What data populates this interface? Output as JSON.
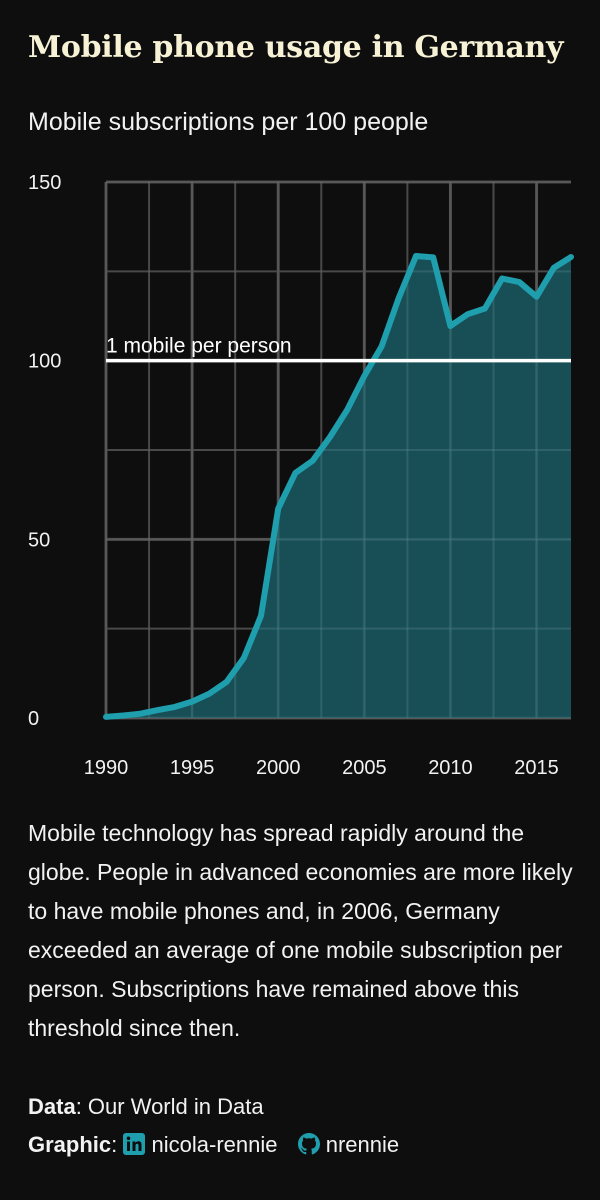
{
  "title": "Mobile phone usage in Germany",
  "subtitle": "Mobile subscriptions per 100 people",
  "body": "Mobile technology has spread rapidly around the globe. People in advanced economies are more likely to have mobile phones and, in 2006, Germany exceeded an average of one mobile subscription per person. Subscriptions have remained above this threshold since then.",
  "credits": {
    "data_label": "Data",
    "data_value": ": Our World in Data",
    "graphic_label": "Graphic",
    "graphic_sep": ":",
    "linkedin": "nicola-rennie",
    "github": "nrennie",
    "linkedin_icon": "linkedin-icon",
    "github_icon": "github-icon"
  },
  "colors": {
    "background": "#0e0e0e",
    "title": "#f7f2d6",
    "line": "#1f9fae",
    "area": "#1a5a63",
    "reference": "#ffffff",
    "grid": "#4a4a4a"
  },
  "chart_data": {
    "type": "area",
    "title": "Mobile subscriptions per 100 people",
    "xlabel": "",
    "ylabel": "",
    "xlim": [
      1990,
      2017
    ],
    "ylim": [
      0,
      150
    ],
    "x_ticks": [
      1990,
      1995,
      2000,
      2005,
      2010,
      2015
    ],
    "y_ticks": [
      0,
      50,
      100,
      150
    ],
    "grid": true,
    "series": [
      {
        "x": [
          1990,
          1991,
          1992,
          1993,
          1994,
          1995,
          1996,
          1997,
          1998,
          1999,
          2000,
          2001,
          2002,
          2003,
          2004,
          2005,
          2006,
          2007,
          2008,
          2009,
          2010,
          2011,
          2012,
          2013,
          2014,
          2015,
          2016,
          2017
        ],
        "values": [
          0.3,
          0.7,
          1.2,
          2.2,
          3.1,
          4.6,
          6.8,
          10.1,
          16.8,
          28.6,
          58.6,
          68.6,
          72.0,
          78.6,
          86.2,
          95.7,
          104.0,
          117.6,
          129.3,
          128.9,
          109.7,
          113.0,
          114.6,
          123.0,
          122.0,
          117.9,
          126.0,
          129.0
        ]
      }
    ],
    "reference_line": {
      "y": 100,
      "label": "1 mobile per person"
    }
  }
}
